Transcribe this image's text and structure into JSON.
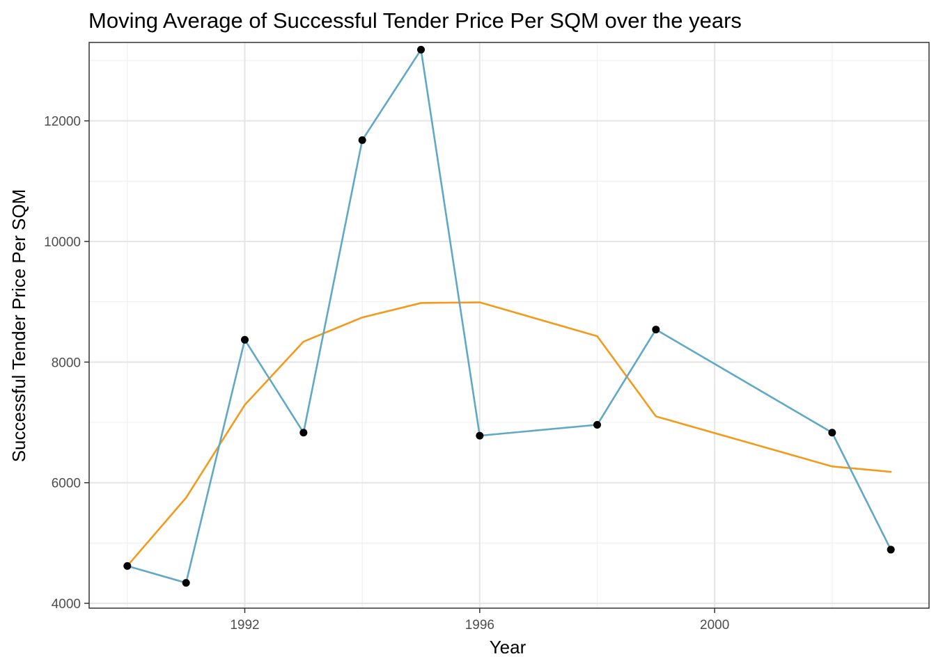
{
  "chart_data": {
    "type": "line",
    "title": "Moving Average of Successful Tender Price Per SQM over the years",
    "xlabel": "Year",
    "ylabel": "Successful Tender Price Per SQM",
    "xlim": [
      1989.35,
      2003.65
    ],
    "ylim": [
      3920,
      13300
    ],
    "x_ticks": [
      1992,
      1996,
      2000
    ],
    "x_tick_labels": [
      "1992",
      "1996",
      "2000"
    ],
    "y_ticks": [
      4000,
      6000,
      8000,
      10000,
      12000
    ],
    "y_tick_labels": [
      "4000",
      "6000",
      "8000",
      "10000",
      "12000"
    ],
    "grid": true,
    "legend": "none",
    "colors": {
      "actual": "#5fa8c6",
      "moving_average": "#f39a1c",
      "points": "#000000"
    },
    "series": [
      {
        "key": "actual",
        "x": [
          1990,
          1991,
          1992,
          1993,
          1994,
          1995,
          1996,
          1998,
          1999,
          2002,
          2003
        ],
        "values": [
          4620,
          4340,
          8370,
          6830,
          11680,
          13180,
          6780,
          6960,
          8540,
          6830,
          4890
        ],
        "markers": true
      },
      {
        "key": "moving_average",
        "x": [
          1990,
          1991,
          1992,
          1993,
          1994,
          1995,
          1996,
          1998,
          1999,
          2002,
          2003
        ],
        "values": [
          4620,
          5750,
          7290,
          8340,
          8740,
          8980,
          8990,
          8430,
          7100,
          6270,
          6180
        ],
        "markers": false
      }
    ]
  }
}
